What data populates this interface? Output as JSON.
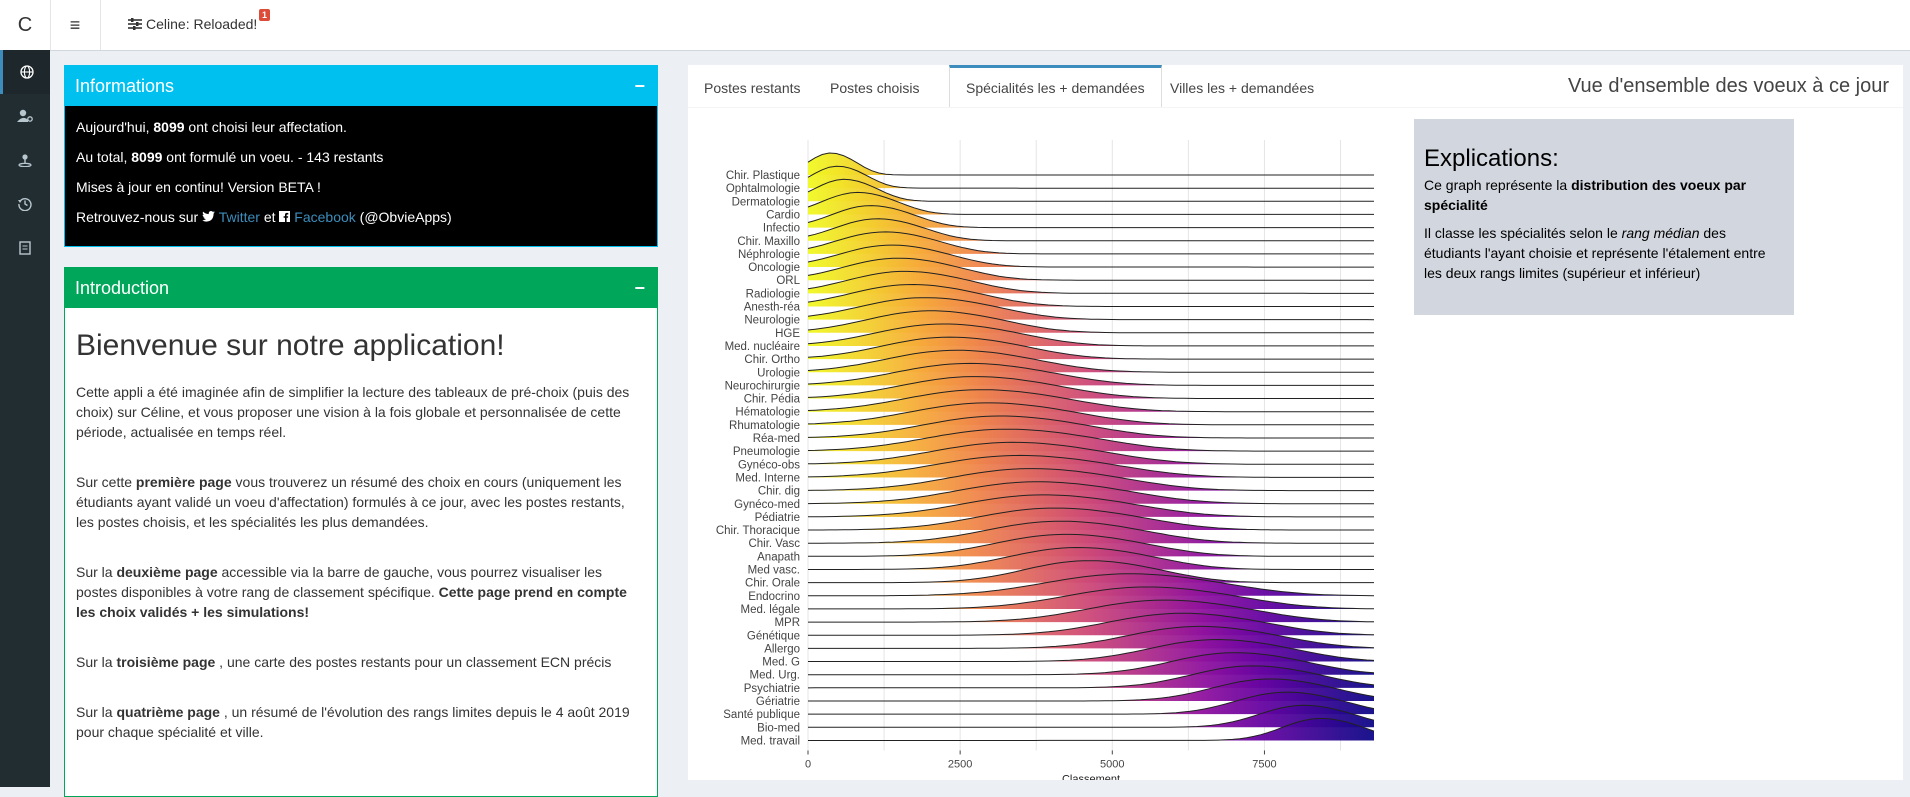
{
  "header": {
    "logo": "C",
    "menu_icon": "≡",
    "app_title": "Celine: Reloaded!",
    "badge": "1"
  },
  "sidebar": {
    "items": [
      {
        "icon": "globe-icon"
      },
      {
        "icon": "user-gear-icon"
      },
      {
        "icon": "map-pin-icon"
      },
      {
        "icon": "history-icon"
      },
      {
        "icon": "report-icon"
      }
    ]
  },
  "info": {
    "title": "Informations",
    "collapse": "−",
    "l1_pre": "Aujourd'hui, ",
    "l1_num": "8099",
    "l1_post": " ont choisi leur affectation.",
    "l2_pre": "Au total, ",
    "l2_num": "8099",
    "l2_post": " ont formulé un voeu. - 143 restants",
    "l3": "Mises à jour en continu! Version BETA !",
    "l4_pre": "Retrouvez-nous sur ",
    "l4_twitter": "Twitter",
    "l4_mid": " et ",
    "l4_facebook": "Facebook",
    "l4_post": " (@ObvieApps)"
  },
  "intro": {
    "title": "Introduction",
    "collapse": "−",
    "heading": "Bienvenue sur notre application!",
    "p1": "Cette appli a été imaginée afin de simplifier la lecture des tableaux de pré-choix (puis des choix) sur Céline, et vous proposer une vision à la fois globale et personnalisée de cette période, actualisée en temps réel.",
    "p2_pre": "Sur cette ",
    "p2_b": "première page",
    "p2_post": " vous trouverez un résumé des choix en cours (uniquement les étudiants ayant validé un voeu d'affectation) formulés à ce jour, avec les postes restants, les postes choisis, et les spécialités les plus demandées.",
    "p3_pre": "Sur la ",
    "p3_b": "deuxième page",
    "p3_mid": " accessible via la barre de gauche, vous pourrez visualiser les postes disponibles à votre rang de classement spécifique. ",
    "p3_b2": "Cette page prend en compte les choix validés + les simulations!",
    "p4_pre": "Sur la ",
    "p4_b": "troisième page",
    "p4_post": " , une carte des postes restants pour un classement ECN précis",
    "p5_pre": "Sur la ",
    "p5_b": "quatrième page",
    "p5_post": " , un résumé de l'évolution des rangs limites depuis le 4 août 2019 pour chaque spécialité et ville."
  },
  "tabs": {
    "items": [
      "Postes restants",
      "Postes choisis",
      "Spécialités les + demandées",
      "Villes les + demandées"
    ],
    "active": 2,
    "title": "Vue d'ensemble des voeux à ce jour"
  },
  "explanation": {
    "title": "Explications:",
    "p1_pre": "Ce graph représente la ",
    "p1_b": "distribution des voeux par spécialité",
    "p2_pre": "Il classe les spécialités selon le ",
    "p2_i": "rang médian",
    "p2_post": " des étudiants l'ayant choisie et représente l'étalement entre les deux rangs limites (supérieur et inférieur)"
  },
  "chart_data": {
    "type": "ridgeline",
    "xlabel": "Classement",
    "ylabel": "",
    "xlim": [
      0,
      9300
    ],
    "xticks": [
      0,
      2500,
      5000,
      7500
    ],
    "colormap": "plasma",
    "series": [
      {
        "name": "Chir. Plastique",
        "peak": 300,
        "spread": 700
      },
      {
        "name": "Ophtalmologie",
        "peak": 400,
        "spread": 800
      },
      {
        "name": "Dermatologie",
        "peak": 500,
        "spread": 900
      },
      {
        "name": "Cardio",
        "peak": 700,
        "spread": 1100
      },
      {
        "name": "Infectio",
        "peak": 900,
        "spread": 1200
      },
      {
        "name": "Chir. Maxillo",
        "peak": 1000,
        "spread": 1300
      },
      {
        "name": "Néphrologie",
        "peak": 1100,
        "spread": 1500
      },
      {
        "name": "Oncologie",
        "peak": 1200,
        "spread": 1600
      },
      {
        "name": "ORL",
        "peak": 1300,
        "spread": 1700
      },
      {
        "name": "Radiologie",
        "peak": 1400,
        "spread": 1800
      },
      {
        "name": "Anesth-réa",
        "peak": 1500,
        "spread": 1900
      },
      {
        "name": "Neurologie",
        "peak": 1700,
        "spread": 2000
      },
      {
        "name": "HGE",
        "peak": 1800,
        "spread": 2000
      },
      {
        "name": "Med. nucléaire",
        "peak": 2000,
        "spread": 2100
      },
      {
        "name": "Chir. Ortho",
        "peak": 2100,
        "spread": 2100
      },
      {
        "name": "Urologie",
        "peak": 2200,
        "spread": 2200
      },
      {
        "name": "Neurochirurgie",
        "peak": 2400,
        "spread": 2300
      },
      {
        "name": "Chir. Pédia",
        "peak": 2500,
        "spread": 2300
      },
      {
        "name": "Hématologie",
        "peak": 2600,
        "spread": 2400
      },
      {
        "name": "Rhumatologie",
        "peak": 2700,
        "spread": 2400
      },
      {
        "name": "Réa-med",
        "peak": 2900,
        "spread": 2400
      },
      {
        "name": "Pneumologie",
        "peak": 3000,
        "spread": 2500
      },
      {
        "name": "Gynéco-obs",
        "peak": 3100,
        "spread": 2500
      },
      {
        "name": "Med. Interne",
        "peak": 3200,
        "spread": 2600
      },
      {
        "name": "Chir. dig",
        "peak": 3400,
        "spread": 2500
      },
      {
        "name": "Gynéco-med",
        "peak": 3500,
        "spread": 2500
      },
      {
        "name": "Pédiatrie",
        "peak": 3600,
        "spread": 2500
      },
      {
        "name": "Chir. Thoracique",
        "peak": 3800,
        "spread": 2400
      },
      {
        "name": "Chir. Vasc",
        "peak": 3900,
        "spread": 2300
      },
      {
        "name": "Anapath",
        "peak": 4000,
        "spread": 2200
      },
      {
        "name": "Med vasc.",
        "peak": 4200,
        "spread": 2100
      },
      {
        "name": "Chir. Orale",
        "peak": 4400,
        "spread": 2000
      },
      {
        "name": "Endocrino",
        "peak": 5000,
        "spread": 2600
      },
      {
        "name": "Med. légale",
        "peak": 5300,
        "spread": 2500
      },
      {
        "name": "MPR",
        "peak": 5600,
        "spread": 2400
      },
      {
        "name": "Génétique",
        "peak": 5900,
        "spread": 2300
      },
      {
        "name": "Allergo",
        "peak": 6200,
        "spread": 2200
      },
      {
        "name": "Med. G",
        "peak": 6500,
        "spread": 2100
      },
      {
        "name": "Med. Urg.",
        "peak": 6800,
        "spread": 2000
      },
      {
        "name": "Psychiatrie",
        "peak": 7100,
        "spread": 1900
      },
      {
        "name": "Gériatrie",
        "peak": 7400,
        "spread": 1800
      },
      {
        "name": "Santé publique",
        "peak": 7700,
        "spread": 1600
      },
      {
        "name": "Bio-med",
        "peak": 8000,
        "spread": 1400
      },
      {
        "name": "Med. travail",
        "peak": 8300,
        "spread": 1200
      }
    ]
  }
}
